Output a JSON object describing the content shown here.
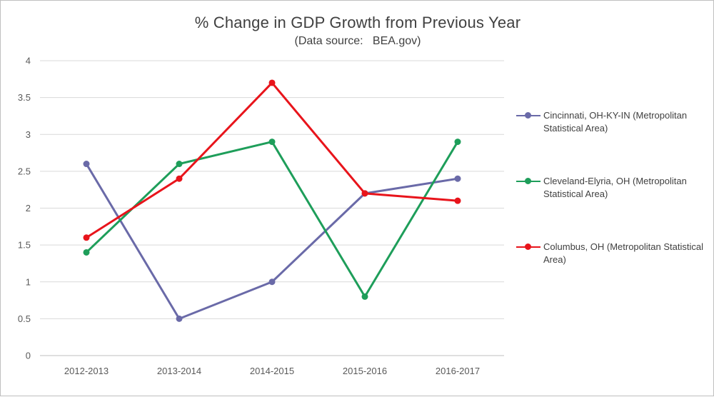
{
  "chart_data": {
    "type": "line",
    "title": "% Change in GDP Growth from Previous Year",
    "subtitle": "(Data source:   BEA.gov)",
    "categories": [
      "2012-2013",
      "2013-2014",
      "2014-2015",
      "2015-2016",
      "2016-2017"
    ],
    "ylim": [
      0,
      4
    ],
    "yticks": [
      "0",
      "0.5",
      "1",
      "1.5",
      "2",
      "2.5",
      "3",
      "3.5",
      "4"
    ],
    "grid": true,
    "legend_position": "right",
    "series": [
      {
        "name": "Cincinnati, OH-KY-IN (Metropolitan Statistical Area)",
        "color": "#6a6aa8",
        "values": [
          2.6,
          0.5,
          1.0,
          2.2,
          2.4
        ]
      },
      {
        "name": "Cleveland-Elyria, OH (Metropolitan Statistical Area)",
        "color": "#1e9e5a",
        "values": [
          1.4,
          2.6,
          2.9,
          0.8,
          2.9
        ]
      },
      {
        "name": "Columbus, OH (Metropolitan Statistical Area)",
        "color": "#e8141b",
        "values": [
          1.6,
          2.4,
          3.7,
          2.2,
          2.1
        ]
      }
    ]
  }
}
